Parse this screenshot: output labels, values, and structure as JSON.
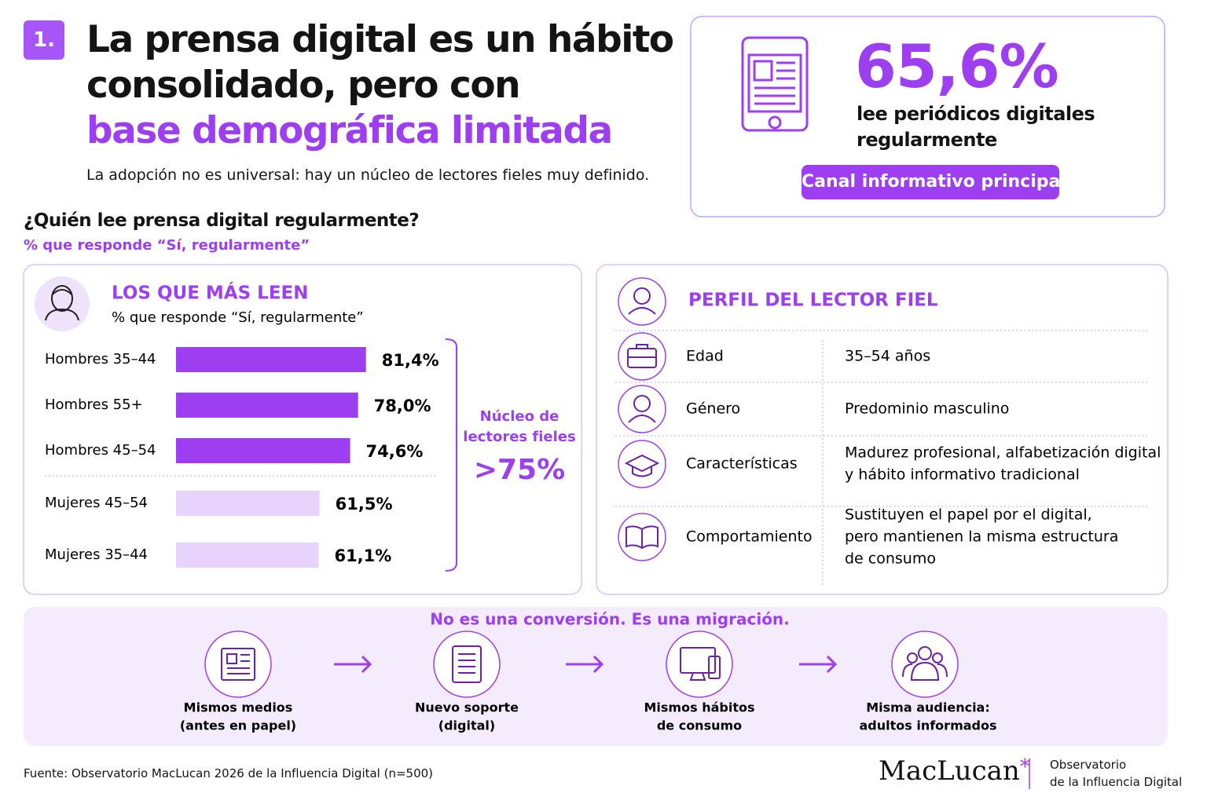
{
  "header": {
    "number": "1.",
    "title_line1": "La prensa digital es un hábito",
    "title_line2": "consolidado, pero con",
    "title_highlight": "base demográfica limitada",
    "subtitle": "La adopción no es universal: hay un núcleo de lectores fieles muy definido."
  },
  "kpi": {
    "value": "65,6%",
    "label_line1": "lee periódicos digitales",
    "label_line2": "regularmente",
    "badge": "Canal informativo principal"
  },
  "section": {
    "title": "¿Quién lee prensa digital regularmente?",
    "subtitle": "% que responde “Sí, regularmente”"
  },
  "chart_data": {
    "type": "bar",
    "orientation": "horizontal",
    "title": "LOS QUE MÁS LEEN",
    "subtitle": "% que responde “Sí, regularmente”",
    "categories": [
      "Hombres 35–44",
      "Hombres 55+",
      "Hombres 45–54",
      "Mujeres 45–54",
      "Mujeres 35–44"
    ],
    "values": [
      81.4,
      78.0,
      74.6,
      61.5,
      61.1
    ],
    "value_labels": [
      "81,4%",
      "78,0%",
      "74,6%",
      "61,5%",
      "61,1%"
    ],
    "colors": [
      "#9d3ff0",
      "#9d3ff0",
      "#9d3ff0",
      "#e7d3fb",
      "#e7d3fb"
    ],
    "annotation": {
      "line1": "Núcleo de",
      "line2": "lectores fieles",
      "value": ">75%"
    }
  },
  "profile": {
    "title": "PERFIL DEL LECTOR FIEL",
    "rows": [
      {
        "label": "Edad",
        "value_lines": [
          "35–54 años"
        ]
      },
      {
        "label": "Género",
        "value_lines": [
          "Predominio masculino"
        ]
      },
      {
        "label": "Características",
        "value_lines": [
          "Madurez profesional, alfabetización digital",
          "y hábito informativo tradicional"
        ]
      },
      {
        "label": "Comportamiento",
        "value_lines": [
          "Sustituyen el papel por el digital,",
          "pero mantienen la misma estructura",
          "de consumo"
        ]
      }
    ]
  },
  "migration": {
    "title": "No es una conversión. Es una migración.",
    "steps": [
      {
        "lines": [
          "Mismos medios",
          "(antes en papel)"
        ]
      },
      {
        "lines": [
          "Nuevo soporte",
          "(digital)"
        ]
      },
      {
        "lines": [
          "Mismos hábitos",
          "de consumo"
        ]
      },
      {
        "lines": [
          "Misma audiencia:",
          "adultos informados"
        ]
      }
    ]
  },
  "footer": {
    "source": "Fuente: Observatorio MacLucan 2026 de la Influencia Digital (n=500)",
    "brand": "MacLucan",
    "brand_mark": "*",
    "org_line1": "Observatorio",
    "org_line2": "de la Influencia Digital"
  }
}
